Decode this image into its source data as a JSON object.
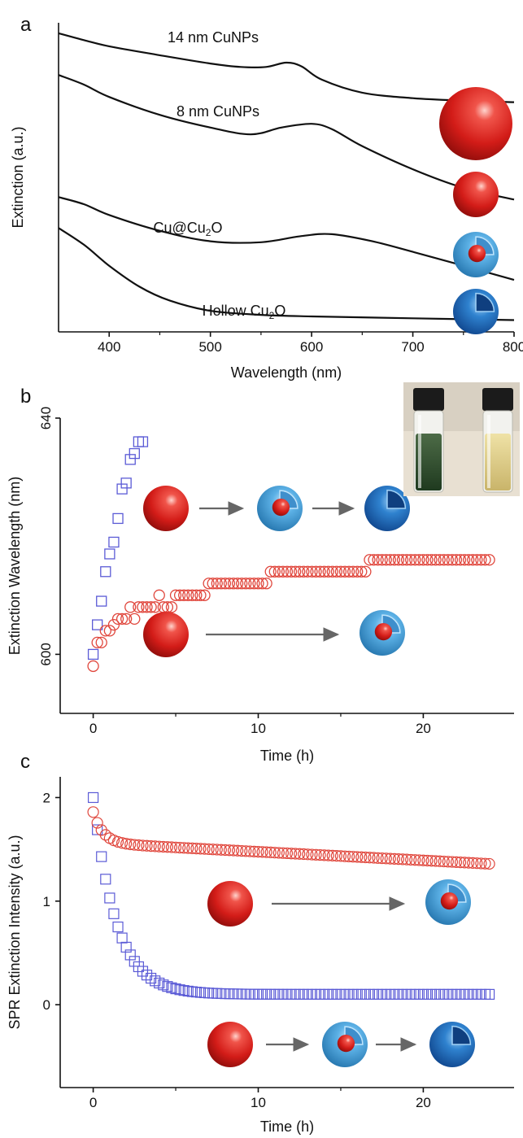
{
  "panels": {
    "a": {
      "letter": "a"
    },
    "b": {
      "letter": "b"
    },
    "c": {
      "letter": "c"
    }
  },
  "colors": {
    "square_series": "#5b5bd6",
    "circle_series": "#e0473d",
    "curve": "#111111",
    "arrow": "#666666",
    "sphere_red": "#d9201e",
    "shell_blue": "#4a9fd8",
    "hollow_blue": "#1c6cc0"
  },
  "icons": [
    "red-sphere-icon",
    "core-shell-icon",
    "hollow-shell-icon",
    "vial-photo"
  ],
  "chart_data": [
    {
      "type": "line",
      "panel": "a",
      "xlabel": "Wavelength (nm)",
      "ylabel": "Extinction (a.u.)",
      "xlim": [
        350,
        800
      ],
      "xticks": [
        400,
        500,
        600,
        700,
        800
      ],
      "yticks": [],
      "series": [
        {
          "name": "14 nm CuNPs",
          "x": [
            350,
            375,
            400,
            450,
            500,
            530,
            555,
            575,
            590,
            610,
            650,
            700,
            750,
            800
          ],
          "y": [
            9.45,
            9.23,
            9.03,
            8.74,
            8.47,
            8.36,
            8.36,
            8.5,
            8.38,
            7.95,
            7.53,
            7.35,
            7.27,
            7.22
          ]
        },
        {
          "name": "8 nm CuNPs",
          "x": [
            350,
            375,
            400,
            450,
            500,
            540,
            570,
            600,
            620,
            650,
            700,
            750,
            800
          ],
          "y": [
            8.1,
            7.79,
            7.39,
            6.81,
            6.4,
            6.18,
            6.4,
            6.52,
            6.35,
            5.8,
            5.05,
            4.45,
            4.07
          ]
        },
        {
          "name": "Cu@Cu2O",
          "x": [
            350,
            375,
            400,
            450,
            500,
            550,
            590,
            620,
            660,
            700,
            750,
            800
          ],
          "y": [
            4.15,
            3.92,
            3.57,
            3.06,
            2.72,
            2.69,
            2.89,
            2.95,
            2.72,
            2.38,
            1.93,
            1.47
          ]
        },
        {
          "name": "Hollow Cu2O",
          "x": [
            350,
            375,
            400,
            430,
            460,
            500,
            550,
            600,
            700,
            800
          ],
          "y": [
            3.15,
            2.61,
            1.93,
            1.25,
            0.8,
            0.47,
            0.34,
            0.29,
            0.23,
            0.17
          ]
        }
      ]
    },
    {
      "type": "scatter",
      "panel": "b",
      "xlabel": "Time (h)",
      "ylabel": "Extinction Wavelength (nm)",
      "xlim": [
        -2,
        25.5
      ],
      "ylim": [
        590,
        640
      ],
      "xticks": [
        0,
        10,
        20
      ],
      "yticks": [
        600,
        640
      ],
      "series": [
        {
          "marker": "square",
          "color": "#5b5bd6",
          "x": [
            0,
            0.25,
            0.5,
            0.75,
            1.0,
            1.25,
            1.5,
            1.75,
            2.0,
            2.25,
            2.5,
            2.75,
            3.0
          ],
          "y": [
            600,
            605,
            609,
            614,
            617,
            619,
            623,
            628,
            629,
            633,
            634,
            636,
            636
          ]
        },
        {
          "marker": "circle",
          "color": "#e0473d",
          "x": [
            0.0,
            0.25,
            0.5,
            0.75,
            1.0,
            1.25,
            1.5,
            1.75,
            2.0,
            2.25,
            2.5,
            2.75,
            3.0,
            3.25,
            3.5,
            3.75,
            4.0,
            4.25,
            4.5,
            4.75,
            5.0,
            5.25,
            5.5,
            5.75,
            6.0,
            6.25,
            6.5,
            6.75,
            7.0,
            7.25,
            7.5,
            7.75,
            8.0,
            8.25,
            8.5,
            8.75,
            9.0,
            9.25,
            9.5,
            9.75,
            10.0,
            10.25,
            10.5,
            10.75,
            11.0,
            11.25,
            11.5,
            11.75,
            12.0,
            12.25,
            12.5,
            12.75,
            13.0,
            13.25,
            13.5,
            13.75,
            14.0,
            14.25,
            14.5,
            14.75,
            15.0,
            15.25,
            15.5,
            15.75,
            16.0,
            16.25,
            16.5,
            16.75,
            17.0,
            17.25,
            17.5,
            17.75,
            18.0,
            18.25,
            18.5,
            18.75,
            19.0,
            19.25,
            19.5,
            19.75,
            20.0,
            20.25,
            20.5,
            20.75,
            21.0,
            21.25,
            21.5,
            21.75,
            22.0,
            22.25,
            22.5,
            22.75,
            23.0,
            23.25,
            23.5,
            23.75,
            24.0
          ],
          "y": [
            598,
            602,
            602,
            604,
            604,
            605,
            606,
            606,
            606,
            608,
            606,
            608,
            608,
            608,
            608,
            608,
            610,
            608,
            608,
            608,
            610,
            610,
            610,
            610,
            610,
            610,
            610,
            610,
            612,
            612,
            612,
            612,
            612,
            612,
            612,
            612,
            612,
            612,
            612,
            612,
            612,
            612,
            612,
            614,
            614,
            614,
            614,
            614,
            614,
            614,
            614,
            614,
            614,
            614,
            614,
            614,
            614,
            614,
            614,
            614,
            614,
            614,
            614,
            614,
            614,
            614,
            614,
            616,
            616,
            616,
            616,
            616,
            616,
            616,
            616,
            616,
            616,
            616,
            616,
            616,
            616,
            616,
            616,
            616,
            616,
            616,
            616,
            616,
            616,
            616,
            616,
            616,
            616,
            616,
            616,
            616,
            616
          ]
        }
      ]
    },
    {
      "type": "scatter",
      "panel": "c",
      "xlabel": "Time (h)",
      "ylabel": "SPR Extinction Intensity (a.u.)",
      "xlim": [
        -2,
        25.5
      ],
      "ylim": [
        -0.8,
        2.2
      ],
      "xticks": [
        0,
        10,
        20
      ],
      "yticks": [
        0,
        1,
        2
      ],
      "series": [
        {
          "marker": "square",
          "color": "#5b5bd6",
          "tau": 1.4,
          "y0": 2.0,
          "yinf": 0.1,
          "dt": 0.25,
          "tmax": 24
        },
        {
          "marker": "circle",
          "color": "#e0473d",
          "y0": 1.86,
          "y_end": 1.36,
          "knee": 0.3,
          "tau": 0.6,
          "dt": 0.25,
          "tmax": 24
        }
      ]
    }
  ]
}
